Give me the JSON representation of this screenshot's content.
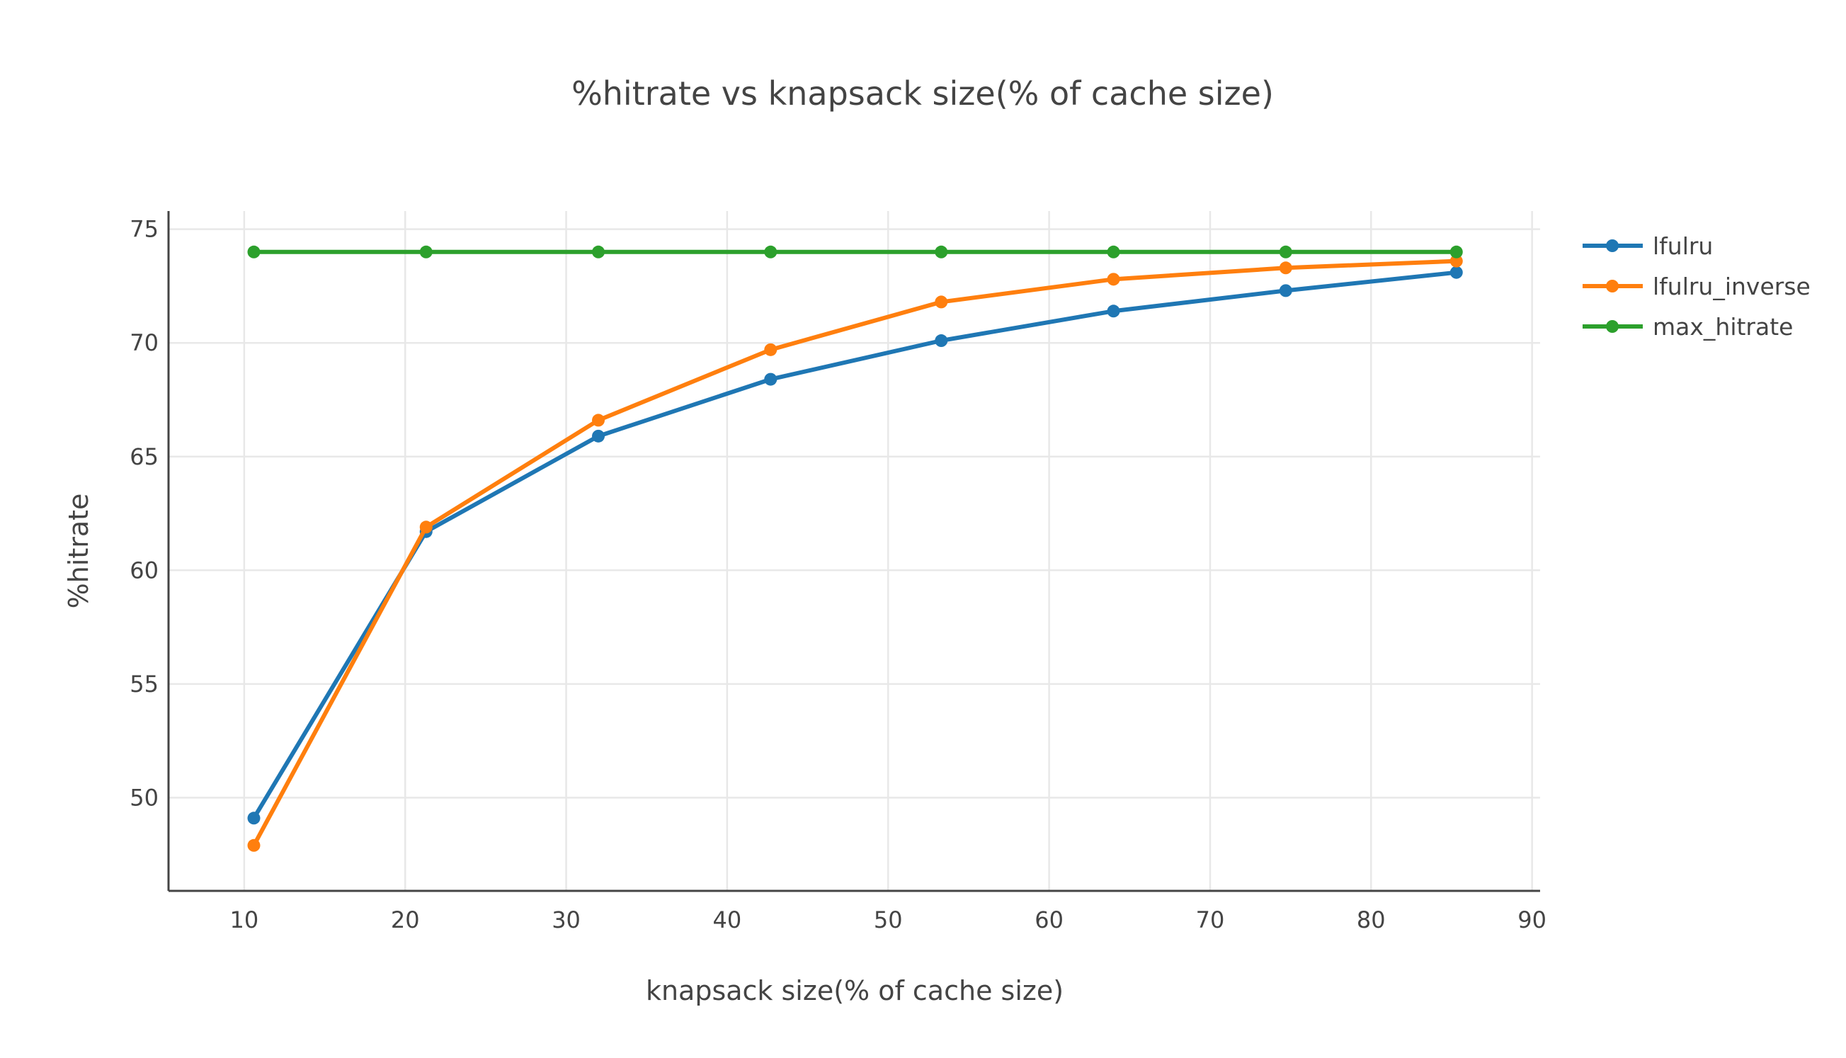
{
  "chart_data": {
    "type": "line",
    "title": "%hitrate vs knapsack size(% of cache size)",
    "xlabel": "knapsack size(% of cache size)",
    "ylabel": "%hitrate",
    "xlim": [
      5.3,
      90.5
    ],
    "ylim": [
      45.9,
      75.8
    ],
    "xticks": [
      10,
      20,
      30,
      40,
      50,
      60,
      70,
      80,
      90
    ],
    "yticks": [
      50,
      55,
      60,
      65,
      70,
      75
    ],
    "grid": true,
    "legend_position": "top-right",
    "x": [
      10.6,
      21.3,
      32.0,
      42.7,
      53.3,
      64.0,
      74.7,
      85.3
    ],
    "series": [
      {
        "name": "lfulru",
        "color": "#1f77b4",
        "values": [
          49.1,
          61.7,
          65.9,
          68.4,
          70.1,
          71.4,
          72.3,
          73.1
        ]
      },
      {
        "name": "lfulru_inverse",
        "color": "#ff7f0e",
        "values": [
          47.9,
          61.9,
          66.6,
          69.7,
          71.8,
          72.8,
          73.3,
          73.6
        ]
      },
      {
        "name": "max_hitrate",
        "color": "#2ca02c",
        "values": [
          74.0,
          74.0,
          74.0,
          74.0,
          74.0,
          74.0,
          74.0,
          74.0
        ]
      }
    ]
  }
}
